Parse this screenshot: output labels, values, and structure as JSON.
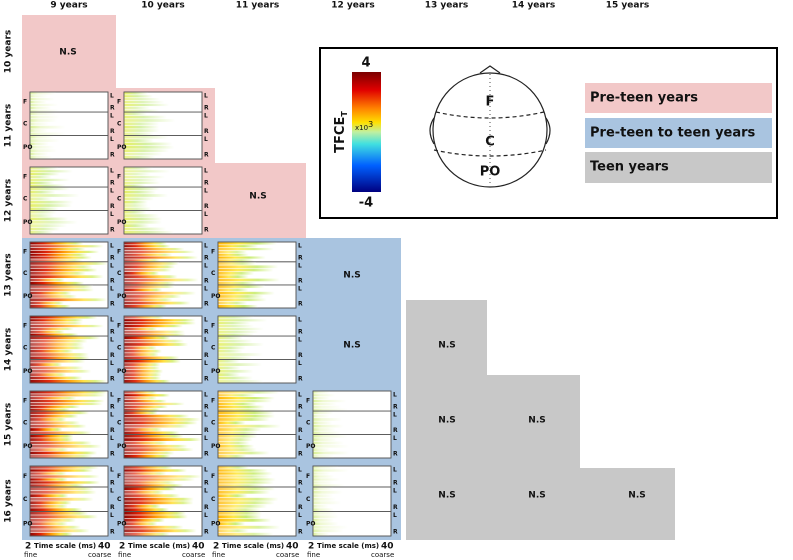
{
  "columns": [
    "9 years",
    "10 years",
    "11 years",
    "12 years",
    "13 years",
    "14 years",
    "15 years"
  ],
  "rows": [
    "10 years",
    "11 years",
    "12 years",
    "13 years",
    "14 years",
    "15 years",
    "16 years"
  ],
  "not_significant": "N.S",
  "regions": [
    "F",
    "C",
    "PO"
  ],
  "hemispheres": [
    "L",
    "R"
  ],
  "x_axis": {
    "start": "2",
    "label": "Time scale (ms)",
    "end": "40",
    "low_end": "fine",
    "high_end": "coarse"
  },
  "legend": {
    "colorbar_title": "TFCE",
    "colorbar_subscript": "T",
    "max": "4",
    "min": "-4",
    "multiplier": "x10",
    "exponent": "3",
    "head_labels": [
      "F",
      "C",
      "PO"
    ],
    "groups": [
      "Pre-teen years",
      "Pre-teen to teen years",
      "Teen years"
    ]
  }
}
